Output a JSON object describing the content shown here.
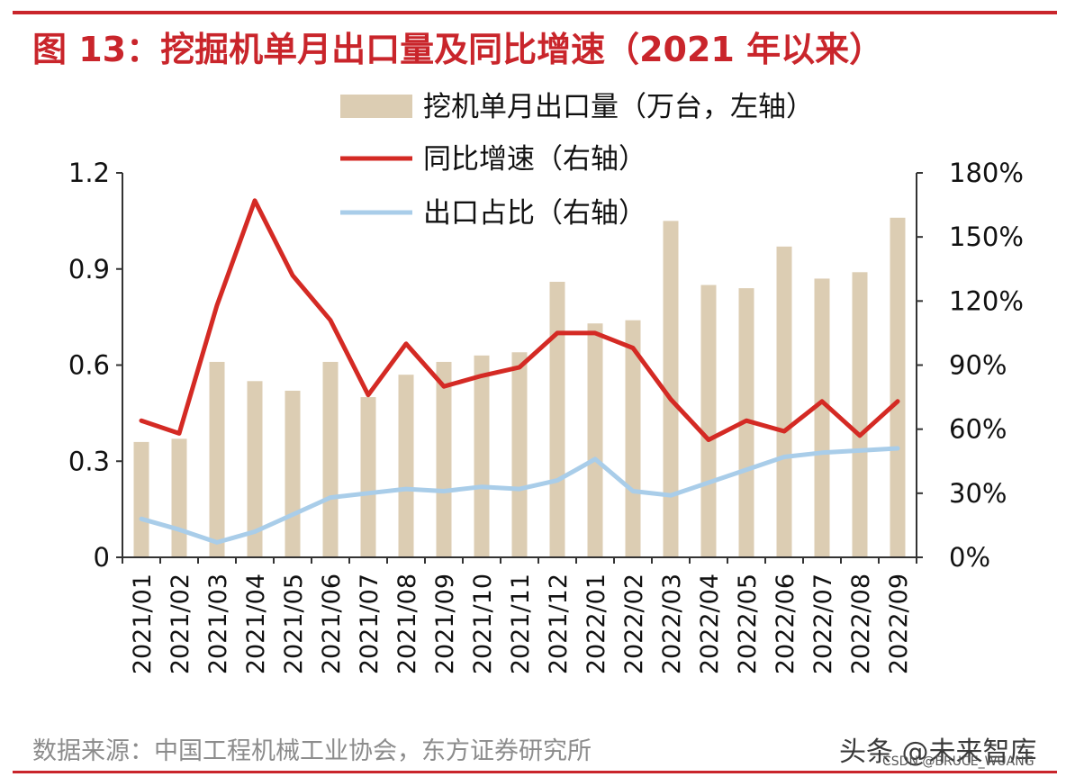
{
  "figure": {
    "title": "图 13：挖掘机单月出口量及同比增速（2021 年以来）",
    "source": "数据来源：中国工程机械工业协会，东方证券研究所",
    "watermark": "头条 @未来智库",
    "watermark2": "CSDN @BRUCE_WUANG"
  },
  "colors": {
    "accent": "#c9252b",
    "bar": "#dccdb3",
    "line_red": "#d42a24",
    "line_blue": "#a9cde9",
    "axis": "#333333"
  },
  "chart_data": {
    "type": "bar",
    "title": "图 13：挖掘机单月出口量及同比增速（2021 年以来）",
    "categories": [
      "2021/01",
      "2021/02",
      "2021/03",
      "2021/04",
      "2021/05",
      "2021/06",
      "2021/07",
      "2021/08",
      "2021/09",
      "2021/10",
      "2021/11",
      "2021/12",
      "2022/01",
      "2022/02",
      "2022/03",
      "2022/04",
      "2022/05",
      "2022/06",
      "2022/07",
      "2022/08",
      "2022/09"
    ],
    "left_axis": {
      "ylim": [
        0,
        1.2
      ],
      "ticks": [
        "0",
        "0.3",
        "0.6",
        "0.9",
        "1.2"
      ],
      "tick_values": [
        0,
        0.3,
        0.6,
        0.9,
        1.2
      ]
    },
    "right_axis": {
      "ylim": [
        0,
        180
      ],
      "ticks": [
        "0%",
        "30%",
        "60%",
        "90%",
        "120%",
        "150%",
        "180%"
      ],
      "tick_values": [
        0,
        30,
        60,
        90,
        120,
        150,
        180
      ]
    },
    "series": [
      {
        "name": "挖机单月出口量（万台，左轴）",
        "kind": "bar",
        "axis": "left",
        "values": [
          0.36,
          0.37,
          0.61,
          0.55,
          0.52,
          0.61,
          0.5,
          0.57,
          0.61,
          0.63,
          0.64,
          0.86,
          0.73,
          0.74,
          1.05,
          0.85,
          0.84,
          0.97,
          0.87,
          0.89,
          1.06
        ]
      },
      {
        "name": "同比增速（右轴）",
        "kind": "line",
        "axis": "right",
        "values": [
          64,
          58,
          118,
          167,
          132,
          111,
          76,
          100,
          80,
          85,
          89,
          105,
          105,
          98,
          74,
          55,
          64,
          59,
          73,
          57,
          73
        ]
      },
      {
        "name": "出口占比（右轴）",
        "kind": "line",
        "axis": "right",
        "values": [
          18,
          13,
          7,
          12,
          20,
          28,
          30,
          32,
          31,
          33,
          32,
          36,
          46,
          31,
          29,
          35,
          41,
          47,
          49,
          50,
          51
        ]
      }
    ]
  }
}
